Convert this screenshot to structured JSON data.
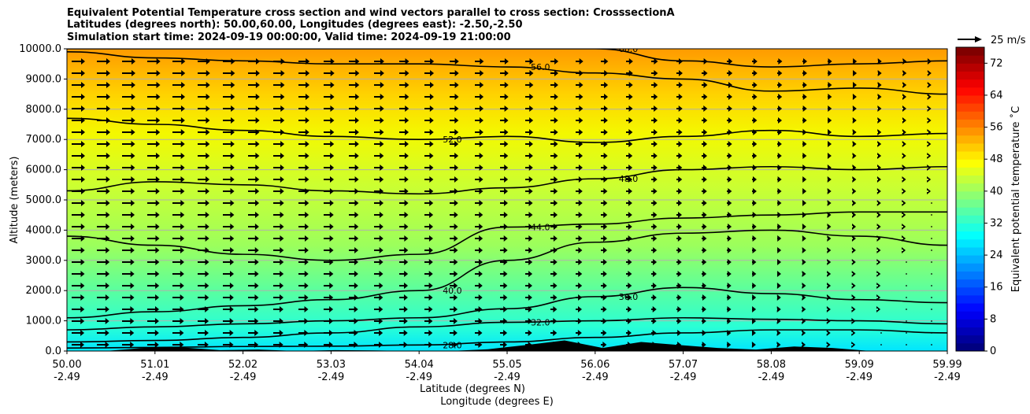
{
  "chart_data": {
    "type": "heatmap",
    "title_lines": [
      "Equivalent Potential Temperature cross section and wind vectors parallel to cross section: CrosssectionA",
      "Latitudes (degrees north): 50.00,60.00, Longitudes (degrees east): -2.50,-2.50",
      "Simulation start time: 2024-09-19 00:00:00, Valid time: 2024-09-19 21:00:00"
    ],
    "ylabel": "Altitude (meters)",
    "xlabel_lines": [
      "Latitude (degrees N)",
      "Longitude (degrees E)"
    ],
    "ylim": [
      0,
      10000
    ],
    "y_ticks": [
      "0.0",
      "1000.0",
      "2000.0",
      "3000.0",
      "4000.0",
      "5000.0",
      "6000.0",
      "7000.0",
      "8000.0",
      "9000.0",
      "10000.0"
    ],
    "x_tick_lat": [
      "50.00",
      "51.01",
      "52.02",
      "53.03",
      "54.04",
      "55.05",
      "56.06",
      "57.07",
      "58.08",
      "59.09",
      "59.99"
    ],
    "x_tick_lon": [
      "-2.49",
      "-2.49",
      "-2.49",
      "-2.49",
      "-2.49",
      "-2.49",
      "-2.49",
      "-2.49",
      "-2.49",
      "-2.49",
      "-2.49"
    ],
    "grid": "horizontal",
    "colorbar": {
      "label": "Equivalent potential temperature ˚C",
      "range": [
        0,
        76
      ],
      "ticks": [
        "0",
        "8",
        "16",
        "24",
        "32",
        "40",
        "48",
        "56",
        "64",
        "72"
      ],
      "colormap": "jet"
    },
    "quiver_key": {
      "label": "25 m/s",
      "position": "top-right"
    },
    "contours": [
      {
        "level": 28,
        "label": "28.0",
        "heights": [
          100,
          120,
          150,
          160,
          200,
          300,
          450,
          600,
          700,
          700,
          600
        ]
      },
      {
        "level": 32,
        "label": "32.0",
        "heights": [
          300,
          350,
          450,
          600,
          800,
          950,
          1000,
          1100,
          1050,
          1000,
          900
        ]
      },
      {
        "level": 36,
        "label": "36.0",
        "heights": [
          700,
          800,
          900,
          1000,
          1100,
          1400,
          1800,
          2100,
          1900,
          1700,
          1600
        ]
      },
      {
        "level": 40,
        "label": "40.0",
        "heights": [
          1100,
          1300,
          1500,
          1700,
          2000,
          3000,
          3600,
          3900,
          4000,
          3800,
          3500
        ]
      },
      {
        "level": 44,
        "label": "44.0",
        "heights": [
          3800,
          3500,
          3200,
          3000,
          3200,
          4100,
          4200,
          4400,
          4500,
          4600,
          4600
        ]
      },
      {
        "level": 48,
        "label": "48.0",
        "heights": [
          5300,
          5600,
          5500,
          5300,
          5200,
          5400,
          5700,
          6000,
          6100,
          6000,
          6100
        ]
      },
      {
        "level": 52,
        "label": "52.0",
        "heights": [
          7700,
          7500,
          7300,
          7100,
          7000,
          7100,
          6900,
          7100,
          7300,
          7100,
          7200
        ]
      },
      {
        "level": 56,
        "label": "56.0",
        "heights": [
          9900,
          9700,
          9600,
          9500,
          9500,
          9400,
          9200,
          9000,
          8600,
          8700,
          8500
        ]
      },
      {
        "level": 60,
        "label": "60.0",
        "heights": [
          10000,
          10000,
          10000,
          10000,
          10000,
          10000,
          10000,
          9600,
          9400,
          9500,
          9600
        ]
      }
    ],
    "terrain_heights": [
      0,
      0,
      100,
      120,
      30,
      50,
      0,
      30,
      20,
      0,
      0,
      60,
      200,
      350,
      100,
      300,
      200,
      100,
      50,
      150,
      100,
      0,
      0,
      0
    ],
    "wind_columns": 35,
    "wind_rows": 26
  }
}
